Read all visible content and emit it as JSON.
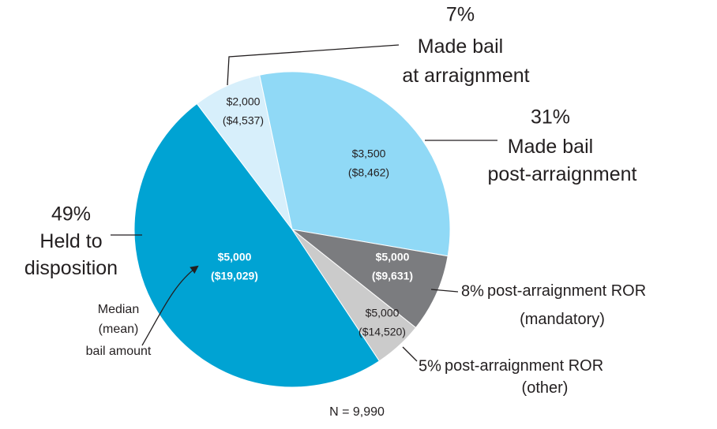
{
  "chart_data": {
    "type": "pie",
    "categories": [
      "Held to\ndisposition",
      "Made bail\nat arraignment",
      "Made bail\npost-arraignment",
      "post-arraignment ROR\n(mandatory)",
      "post-arraignment ROR\n(other)"
    ],
    "values": [
      49,
      7,
      31,
      8,
      5
    ],
    "value_labels": [
      "49%",
      "7%",
      "31%",
      "8%",
      "5%"
    ],
    "colors": [
      "#00a3d3",
      "#d7effb",
      "#90d9f6",
      "#7b7c7f",
      "#cbcbcb"
    ],
    "median": [
      5000,
      2000,
      3500,
      5000,
      5000
    ],
    "median_labels": [
      "$5,000",
      "$2,000",
      "$3,500",
      "$5,000",
      "$5,000"
    ],
    "mean": [
      19029,
      4537,
      8462,
      9631,
      14520
    ],
    "mean_labels": [
      "($19,029)",
      "($4,537)",
      "($8,462)",
      "($9,631)",
      "($14,520)"
    ],
    "annotation": "Median\n(mean)\nbail amount",
    "footnote": "N = 9,990"
  }
}
